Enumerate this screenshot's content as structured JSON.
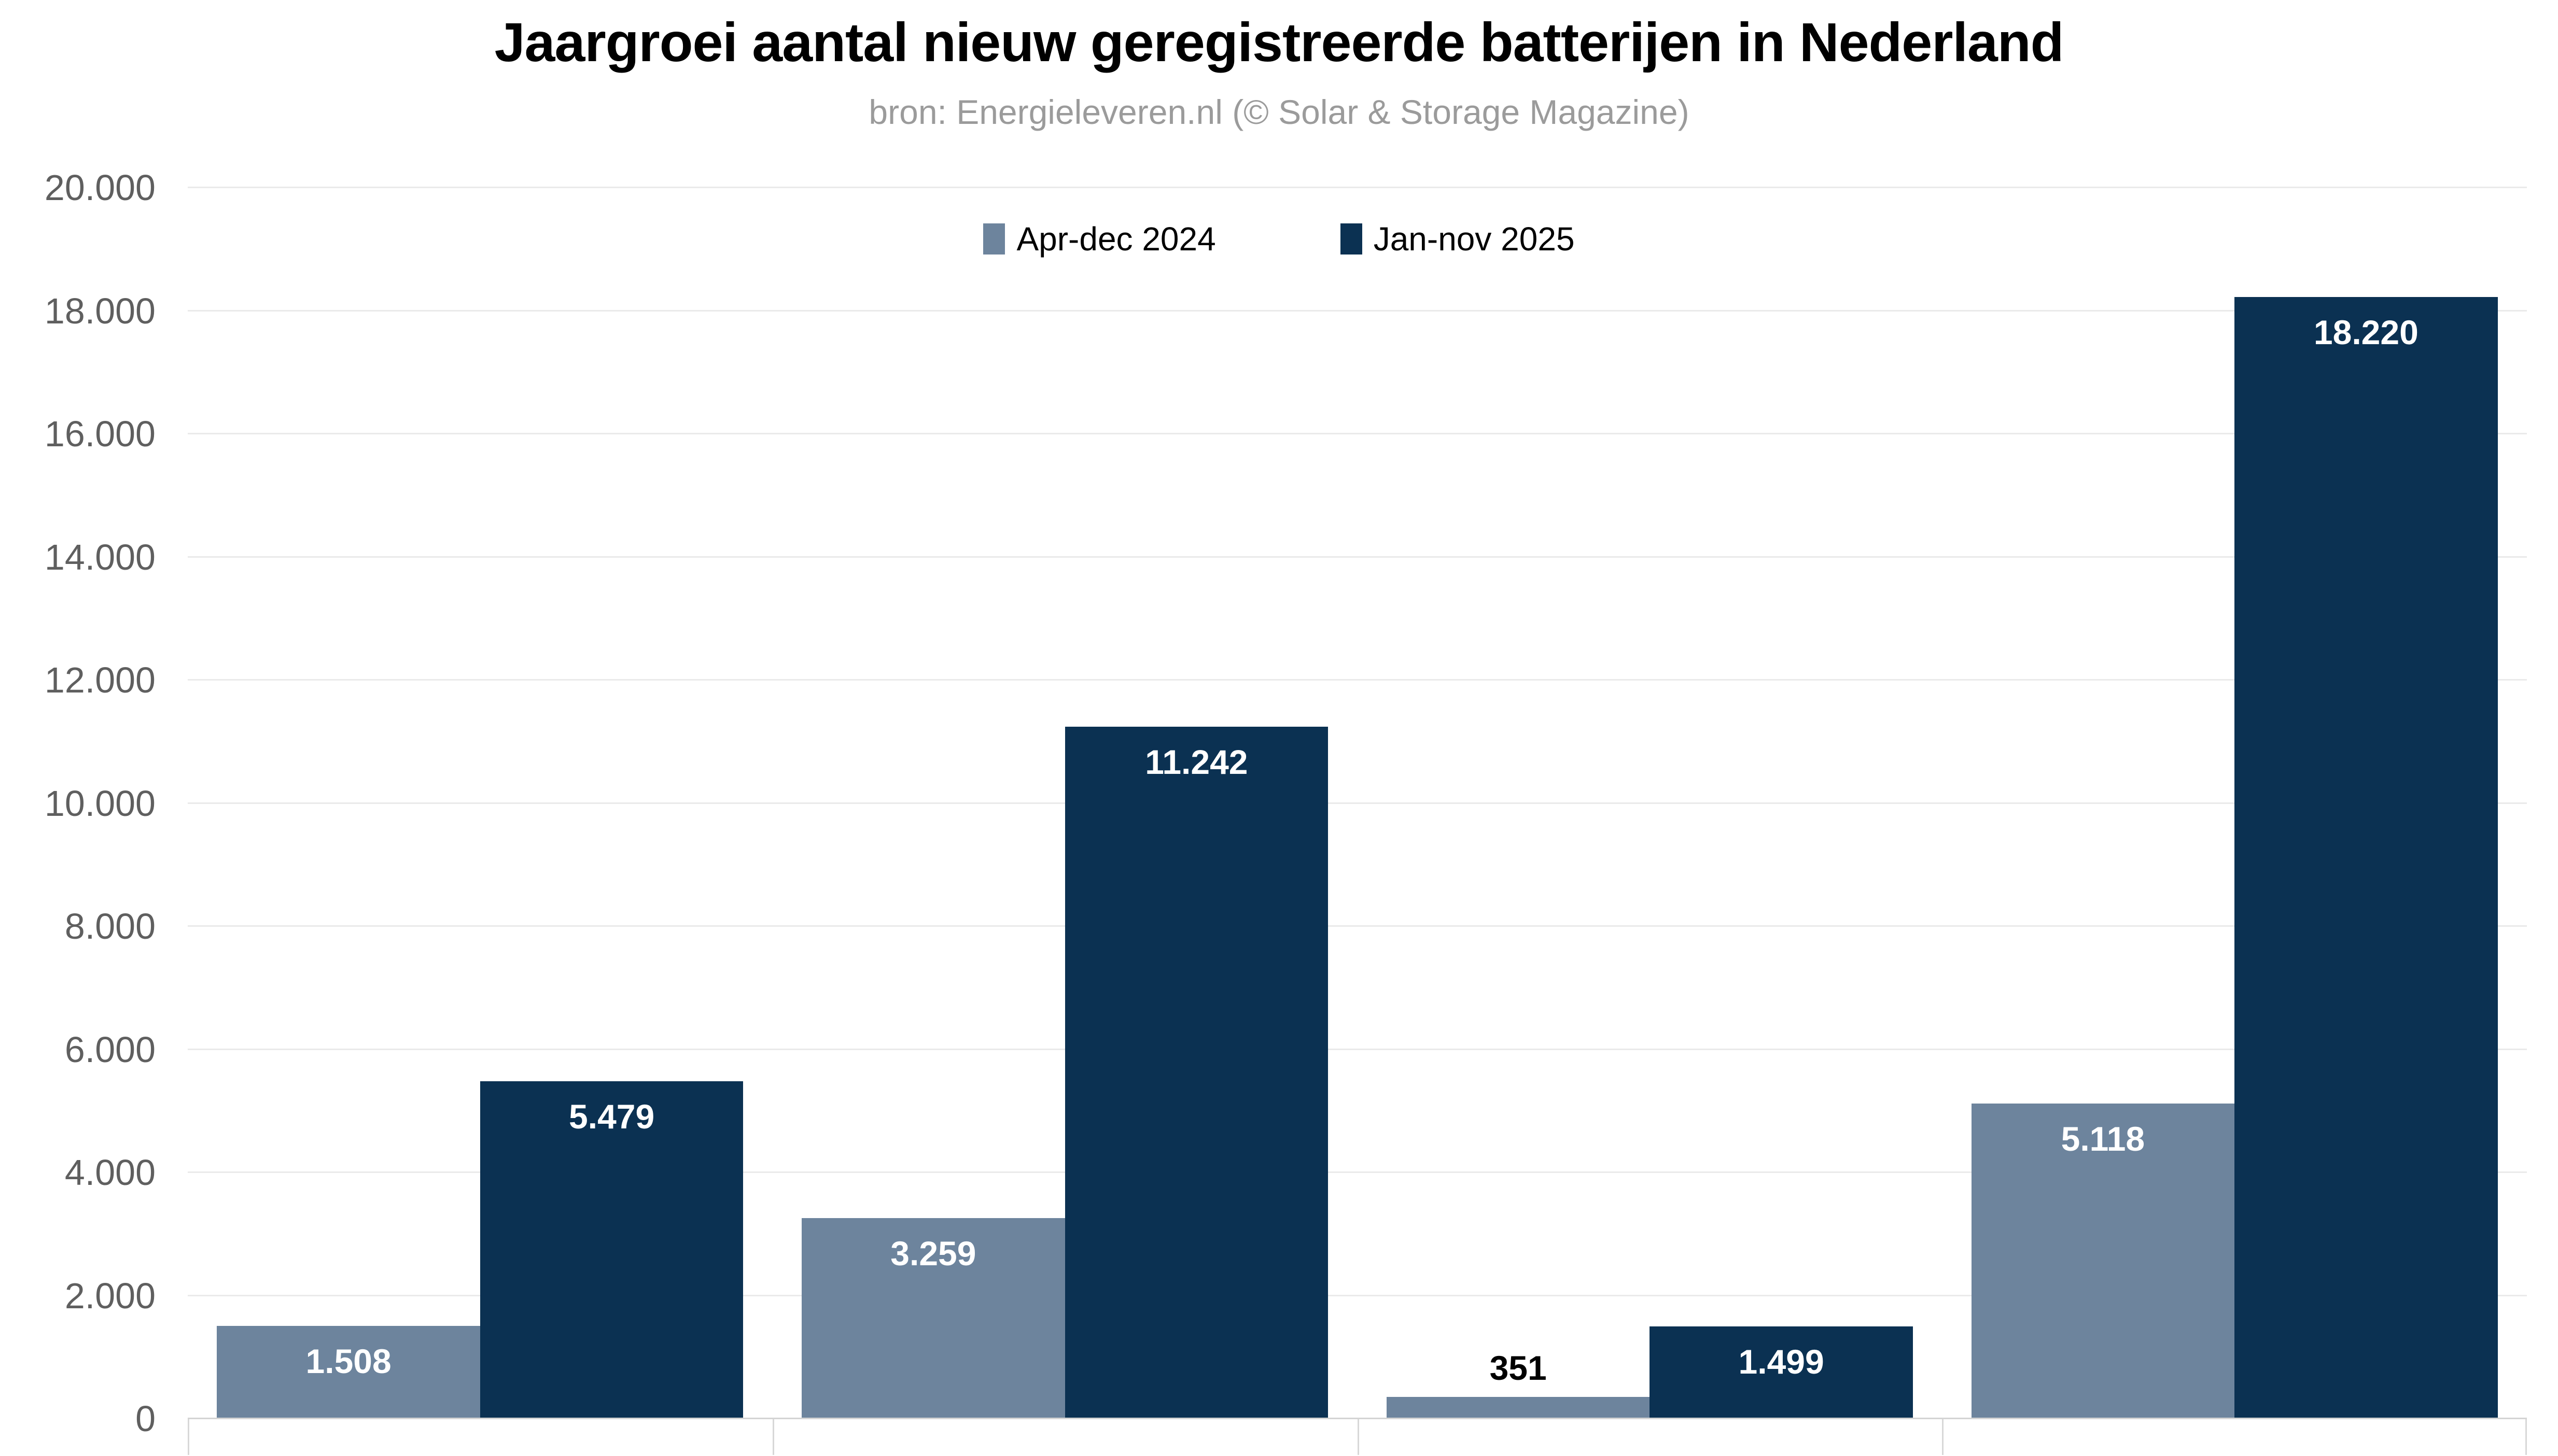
{
  "header": {
    "title": "Jaargroei aantal nieuw geregistreerde batterijen in Nederland",
    "subtitle": "bron: Energieleveren.nl (© Solar & Storage Magazine)"
  },
  "legend": {
    "items": [
      {
        "label": "Apr-dec 2024",
        "color": "#6d849d"
      },
      {
        "label": "Jan-nov 2025",
        "color": "#0b3152"
      }
    ]
  },
  "colors": {
    "background": "#ffffff",
    "title": "#000000",
    "subtitle": "#9b9b9b",
    "y_tick_label": "#5f5f5f",
    "gridline": "#eaeaea",
    "baseline": "#d4d4d4",
    "series_light": "#6d849d",
    "series_dark": "#0b3152",
    "label_inside": "#ffffff",
    "label_above": "#000000"
  },
  "chart_data": {
    "type": "bar",
    "title": "Jaargroei aantal nieuw geregistreerde batterijen in Nederland",
    "subtitle": "bron: Energieleveren.nl (© Solar & Storage Magazine)",
    "categories": [
      "",
      "",
      "",
      ""
    ],
    "series": [
      {
        "name": "Apr-dec 2024",
        "color": "#6d849d",
        "values": [
          1508,
          3259,
          351,
          5118
        ],
        "value_labels": [
          "1.508",
          "3.259",
          "351",
          "5.118"
        ]
      },
      {
        "name": "Jan-nov 2025",
        "color": "#0b3152",
        "values": [
          5479,
          11242,
          1499,
          18220
        ],
        "value_labels": [
          "5.479",
          "11.242",
          "1.499",
          "18.220"
        ]
      }
    ],
    "ylim": [
      0,
      20000
    ],
    "y_ticks": [
      {
        "value": 0,
        "label": "0"
      },
      {
        "value": 2000,
        "label": "2.000"
      },
      {
        "value": 4000,
        "label": "4.000"
      },
      {
        "value": 6000,
        "label": "6.000"
      },
      {
        "value": 8000,
        "label": "8.000"
      },
      {
        "value": 10000,
        "label": "10.000"
      },
      {
        "value": 12000,
        "label": "12.000"
      },
      {
        "value": 14000,
        "label": "14.000"
      },
      {
        "value": 16000,
        "label": "16.000"
      },
      {
        "value": 18000,
        "label": "18.000"
      },
      {
        "value": 20000,
        "label": "20.000"
      }
    ],
    "grid": "horizontal",
    "legend_position": "top-center",
    "x_axis_labels_visible": false
  }
}
